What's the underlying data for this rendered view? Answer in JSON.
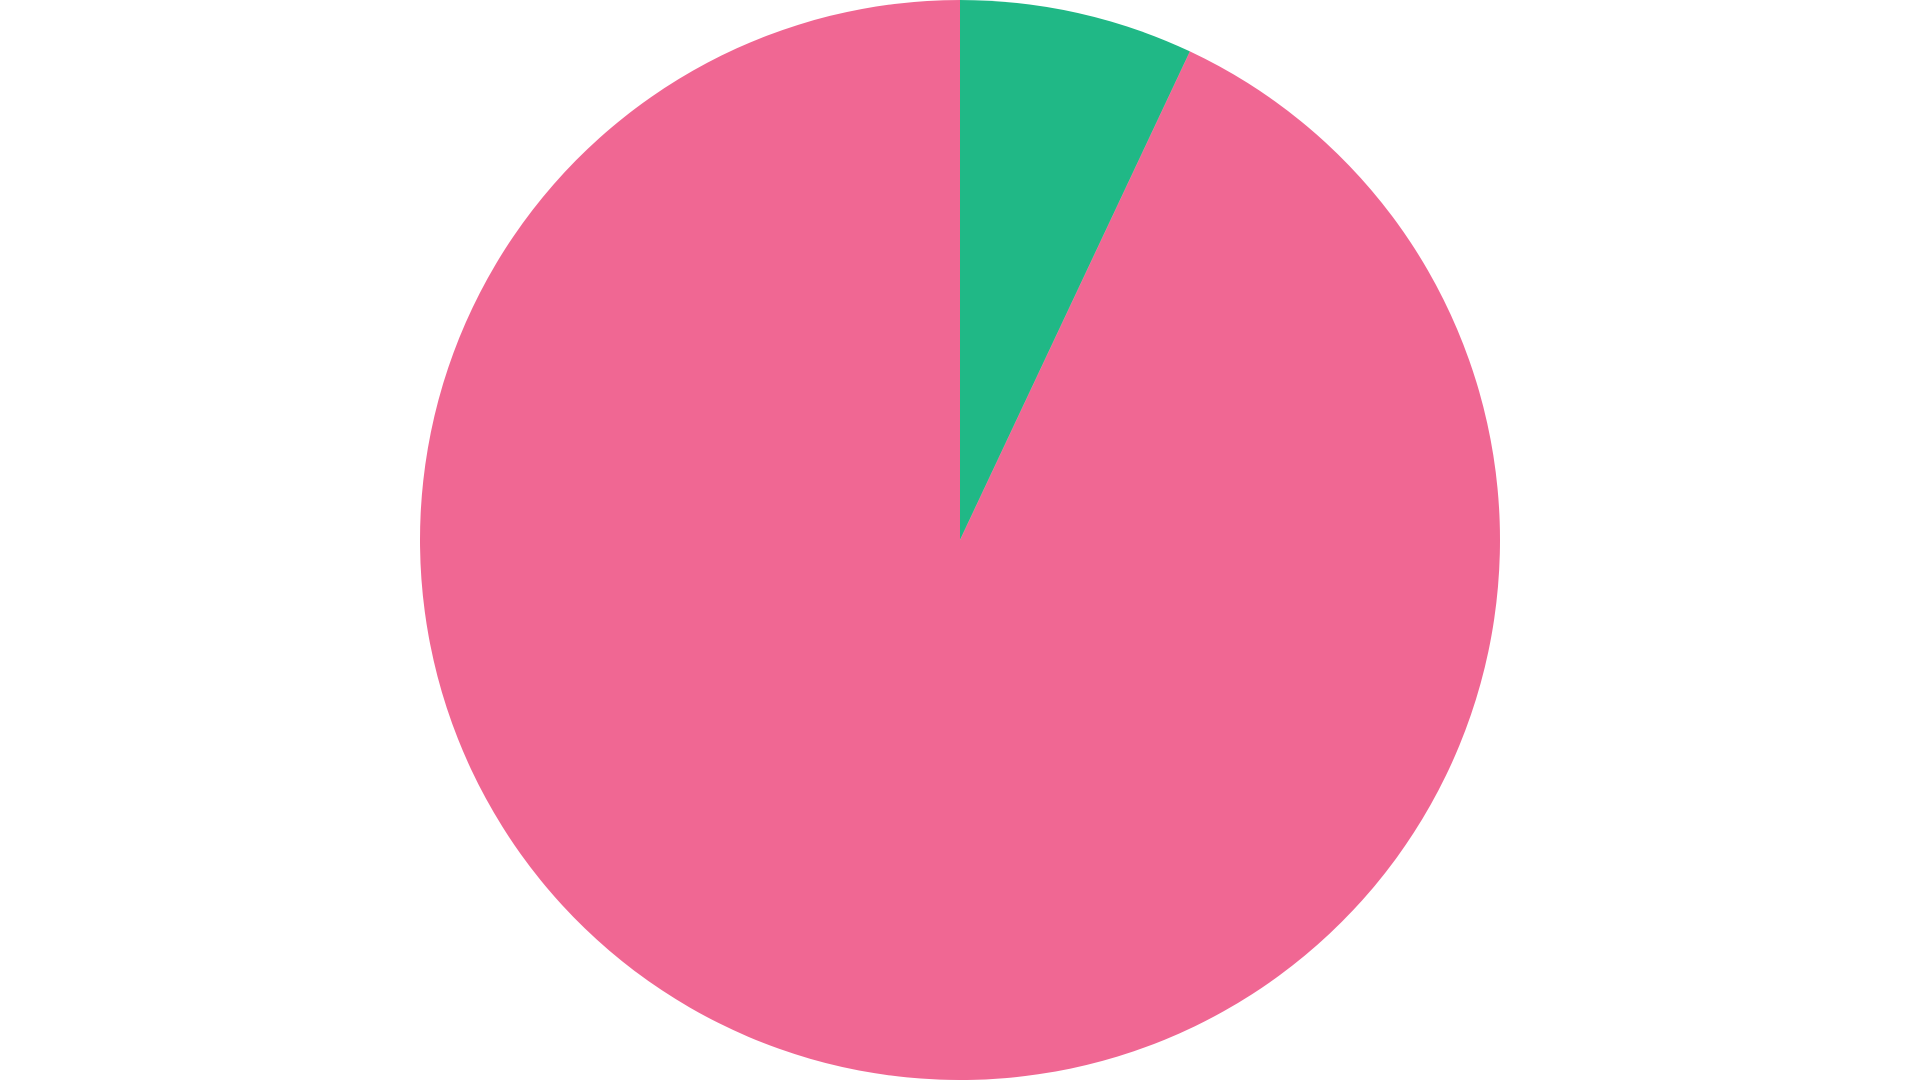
{
  "chart_data": {
    "type": "pie",
    "values": [
      7,
      93
    ],
    "colors": [
      "#20b886",
      "#f06793"
    ]
  }
}
